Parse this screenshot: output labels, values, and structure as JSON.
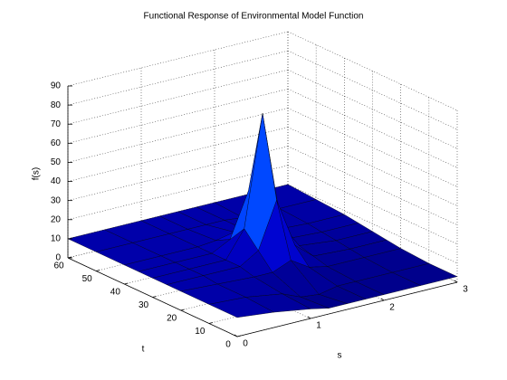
{
  "chart_data": {
    "type": "surface",
    "title": "Functional Response of Environmental Model Function",
    "xlabel": "s",
    "ylabel": "t",
    "zlabel": "f(s)",
    "x": [
      0,
      0.5,
      1,
      1.25,
      1.5,
      1.75,
      2,
      2.5,
      3
    ],
    "y": [
      0,
      10,
      20,
      25,
      30,
      35,
      40,
      50,
      60
    ],
    "z": [
      [
        10,
        8,
        5,
        3,
        3,
        3,
        3,
        3,
        3
      ],
      [
        10,
        9,
        6,
        2,
        1,
        3,
        3,
        3,
        3
      ],
      [
        10,
        9,
        8,
        8,
        12,
        6,
        4,
        4,
        4
      ],
      [
        10,
        10,
        10,
        16,
        40,
        14,
        6,
        5,
        5
      ],
      [
        10,
        10,
        10,
        24,
        82,
        22,
        8,
        6,
        6
      ],
      [
        10,
        10,
        10,
        15,
        38,
        14,
        8,
        7,
        7
      ],
      [
        10,
        10,
        10,
        11,
        13,
        10,
        9,
        8,
        8
      ],
      [
        10,
        10,
        10,
        10,
        10,
        10,
        9,
        9,
        9
      ],
      [
        10,
        10,
        10,
        10,
        10,
        10,
        10,
        10,
        10
      ]
    ],
    "xlim": [
      0,
      3
    ],
    "ylim": [
      0,
      60
    ],
    "zlim": [
      0,
      90
    ],
    "xticks": [
      0,
      1,
      2,
      3
    ],
    "yticks": [
      0,
      10,
      20,
      30,
      40,
      50,
      60
    ],
    "zticks": [
      0,
      10,
      20,
      30,
      40,
      50,
      60,
      70,
      80,
      90
    ],
    "grid": true,
    "colormap": [
      "#00007f",
      "#0000c0",
      "#0010ff",
      "#0060ff",
      "#20c0ff",
      "#70ff90",
      "#d0ff30"
    ]
  }
}
